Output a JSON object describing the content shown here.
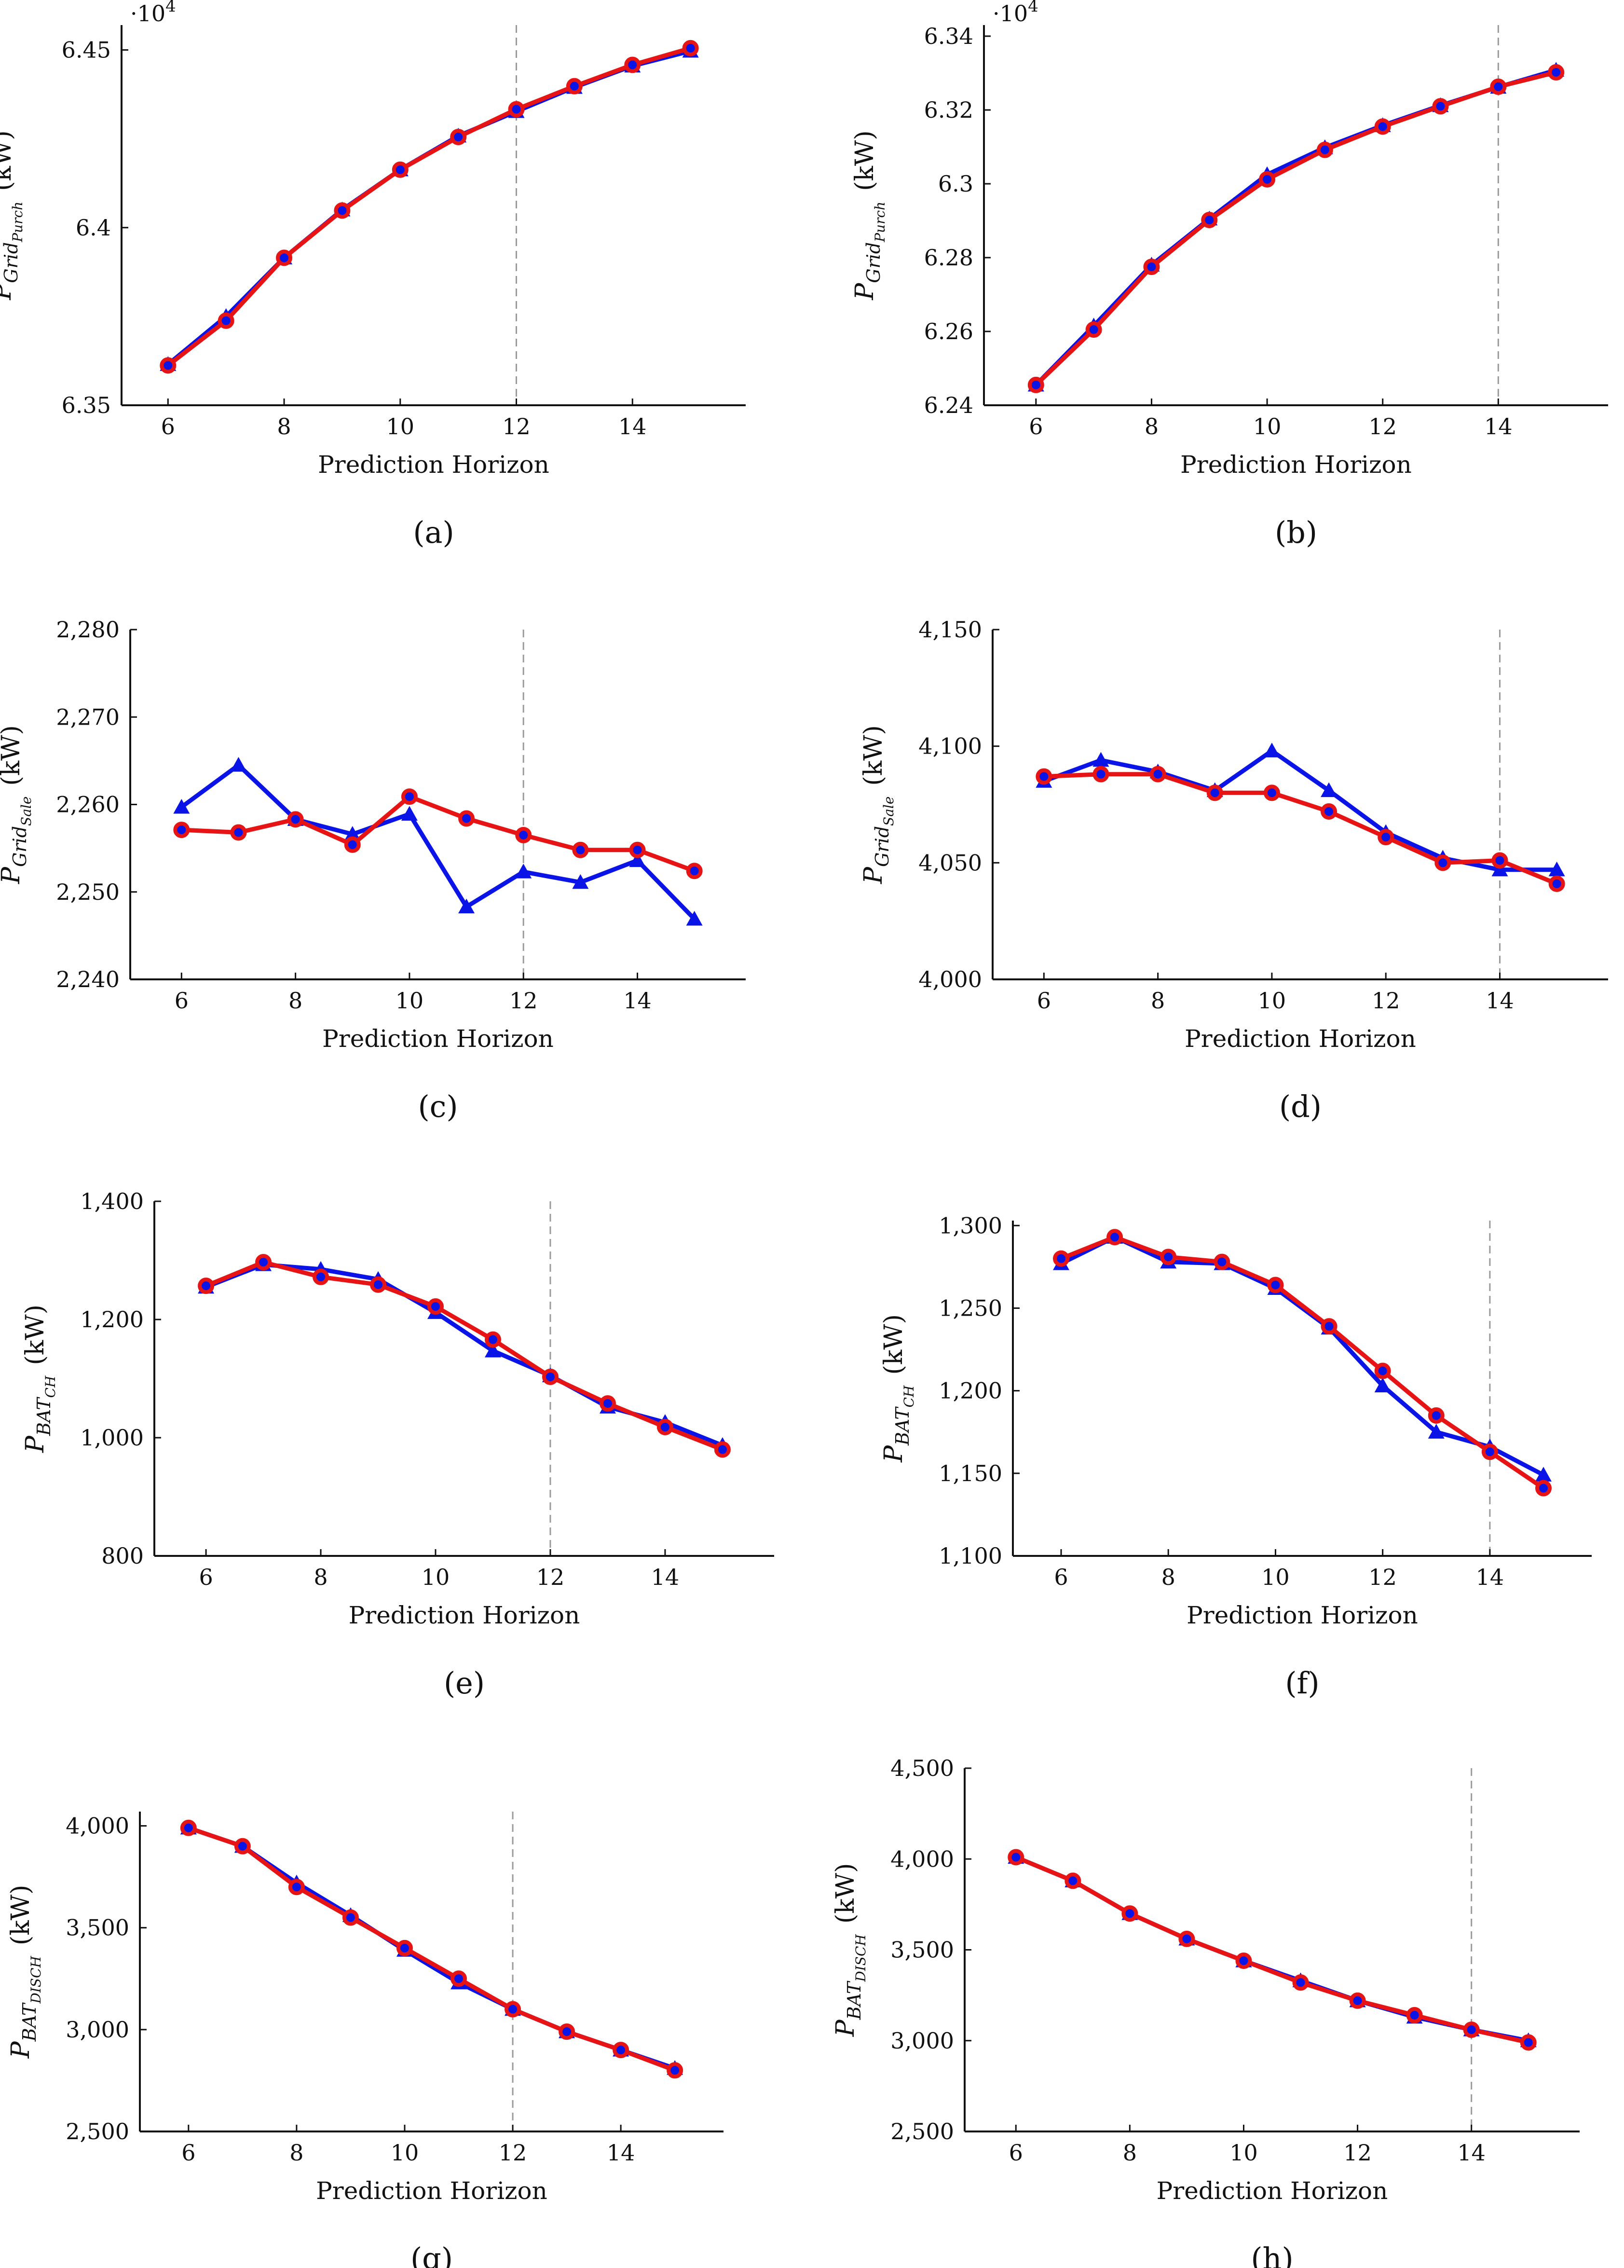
{
  "colors": {
    "blue": "#0a14e6",
    "red": "#e61414",
    "axis": "#111111",
    "vline": "#9a9a9a"
  },
  "legend": {},
  "chart_data": [
    {
      "type": "line",
      "panel": "a",
      "caption": "(a)",
      "xlabel": "Prediction Horizon",
      "ylabel_main": "P",
      "ylabel_sub": "Grid",
      "ylabel_subsub": "Purch",
      "ylabel_unit": "(kW)",
      "exponent_label": "·10",
      "exponent_power": "4",
      "x": [
        6,
        7,
        8,
        9,
        10,
        11,
        12,
        13,
        14,
        15
      ],
      "xlim": [
        5.2,
        15.95
      ],
      "xticks": [
        6,
        8,
        10,
        12,
        14
      ],
      "ylim": [
        6.35,
        6.457
      ],
      "yticks": [
        6.35,
        6.4,
        6.45
      ],
      "yticklabels": [
        "6.35",
        "6.4",
        "6.45"
      ],
      "vline": 12,
      "series": [
        {
          "name": "blue",
          "marker": "triangle",
          "values": [
            6.3615,
            6.375,
            6.3915,
            6.405,
            6.4163,
            6.4258,
            6.4327,
            6.4395,
            6.4455,
            6.4497
          ]
        },
        {
          "name": "red",
          "marker": "circle",
          "values": [
            6.3612,
            6.3738,
            6.3915,
            6.4048,
            6.4163,
            6.4255,
            6.4333,
            6.4398,
            6.4458,
            6.4505
          ]
        }
      ]
    },
    {
      "type": "line",
      "panel": "b",
      "caption": "(b)",
      "xlabel": "Prediction Horizon",
      "ylabel_main": "P",
      "ylabel_sub": "Grid",
      "ylabel_subsub": "Purch",
      "ylabel_unit": "(kW)",
      "exponent_label": "·10",
      "exponent_power": "4",
      "x": [
        6,
        7,
        8,
        9,
        10,
        11,
        12,
        13,
        14,
        15
      ],
      "xlim": [
        5.1,
        15.9
      ],
      "xticks": [
        6,
        8,
        10,
        12,
        14
      ],
      "ylim": [
        6.24,
        6.343
      ],
      "yticks": [
        6.24,
        6.26,
        6.28,
        6.3,
        6.32,
        6.34
      ],
      "yticklabels": [
        "6.24",
        "6.26",
        "6.28",
        "6.3",
        "6.32",
        "6.34"
      ],
      "vline": 14,
      "series": [
        {
          "name": "blue",
          "marker": "triangle",
          "values": [
            6.2455,
            6.2615,
            6.278,
            6.2905,
            6.3025,
            6.3098,
            6.3158,
            6.3212,
            6.3262,
            6.3308
          ]
        },
        {
          "name": "red",
          "marker": "circle",
          "values": [
            6.2455,
            6.2605,
            6.2775,
            6.2902,
            6.3012,
            6.3092,
            6.3155,
            6.321,
            6.3263,
            6.3302
          ]
        }
      ]
    },
    {
      "type": "line",
      "panel": "c",
      "caption": "(c)",
      "xlabel": "Prediction Horizon",
      "ylabel_main": "P",
      "ylabel_sub": "Grid",
      "ylabel_subsub": "Sale",
      "ylabel_unit": "(kW)",
      "x": [
        6,
        7,
        8,
        9,
        10,
        11,
        12,
        13,
        14,
        15
      ],
      "xlim": [
        5.1,
        15.9
      ],
      "xticks": [
        6,
        8,
        10,
        12,
        14
      ],
      "ylim": [
        2240,
        2280
      ],
      "yticks": [
        2240,
        2250,
        2260,
        2270,
        2280
      ],
      "yticklabels": [
        "2,240",
        "2,250",
        "2,260",
        "2,270",
        "2,280"
      ],
      "vline": 12,
      "series": [
        {
          "name": "blue",
          "marker": "triangle",
          "values": [
            2259.7,
            2264.5,
            2258.3,
            2256.6,
            2258.9,
            2248.3,
            2252.3,
            2251.1,
            2253.6,
            2246.9
          ]
        },
        {
          "name": "red",
          "marker": "circle",
          "values": [
            2257.1,
            2256.8,
            2258.3,
            2255.4,
            2260.9,
            2258.4,
            2256.5,
            2254.8,
            2254.8,
            2252.4
          ]
        }
      ]
    },
    {
      "type": "line",
      "panel": "d",
      "caption": "(d)",
      "xlabel": "Prediction Horizon",
      "ylabel_main": "P",
      "ylabel_sub": "Grid",
      "ylabel_subsub": "Sale",
      "ylabel_unit": "(kW)",
      "x": [
        6,
        7,
        8,
        9,
        10,
        11,
        12,
        13,
        14,
        15
      ],
      "xlim": [
        5.1,
        15.9
      ],
      "xticks": [
        6,
        8,
        10,
        12,
        14
      ],
      "ylim": [
        4000,
        4150
      ],
      "yticks": [
        4000,
        4050,
        4100,
        4150
      ],
      "yticklabels": [
        "4,000",
        "4,050",
        "4,100",
        "4,150"
      ],
      "vline": 14,
      "series": [
        {
          "name": "blue",
          "marker": "triangle",
          "values": [
            4085,
            4094,
            4089,
            4081,
            4098,
            4081,
            4063,
            4052,
            4047,
            4047
          ]
        },
        {
          "name": "red",
          "marker": "circle",
          "values": [
            4087,
            4088,
            4088,
            4080,
            4080,
            4072,
            4061,
            4050,
            4051,
            4041
          ]
        }
      ]
    },
    {
      "type": "line",
      "panel": "e",
      "caption": "(e)",
      "xlabel": "Prediction Horizon",
      "ylabel_main": "P",
      "ylabel_sub": "BAT",
      "ylabel_subsub": "CH",
      "ylabel_unit": "(kW)",
      "x": [
        6,
        7,
        8,
        9,
        10,
        11,
        12,
        13,
        14,
        15
      ],
      "xlim": [
        5.1,
        15.9
      ],
      "xticks": [
        6,
        8,
        10,
        12,
        14
      ],
      "ylim": [
        800,
        1400
      ],
      "yticks": [
        800,
        1000,
        1200,
        1400
      ],
      "yticklabels": [
        "800",
        "1,000",
        "1,200",
        "1,400"
      ],
      "vline": 12,
      "series": [
        {
          "name": "blue",
          "marker": "triangle",
          "values": [
            1255,
            1293,
            1285,
            1268,
            1212,
            1147,
            1105,
            1052,
            1026,
            987
          ]
        },
        {
          "name": "red",
          "marker": "circle",
          "values": [
            1257,
            1297,
            1272,
            1259,
            1222,
            1166,
            1103,
            1058,
            1018,
            980
          ]
        }
      ]
    },
    {
      "type": "line",
      "panel": "f",
      "caption": "(f)",
      "xlabel": "Prediction Horizon",
      "ylabel_main": "P",
      "ylabel_sub": "BAT",
      "ylabel_subsub": "CH",
      "ylabel_unit": "(kW)",
      "x": [
        6,
        7,
        8,
        9,
        10,
        11,
        12,
        13,
        14,
        15
      ],
      "xlim": [
        5.1,
        15.9
      ],
      "xticks": [
        6,
        8,
        10,
        12,
        14
      ],
      "ylim": [
        1100,
        1303
      ],
      "yticks": [
        1100,
        1150,
        1200,
        1250,
        1300
      ],
      "yticklabels": [
        "1,100",
        "1,150",
        "1,200",
        "1,250",
        "1,300"
      ],
      "vline": 14,
      "series": [
        {
          "name": "blue",
          "marker": "triangle",
          "values": [
            1277,
            1293,
            1278,
            1277,
            1262,
            1238,
            1203,
            1175,
            1166,
            1149
          ]
        },
        {
          "name": "red",
          "marker": "circle",
          "values": [
            1280,
            1293,
            1281,
            1278,
            1264,
            1239,
            1212,
            1185,
            1163,
            1141
          ]
        }
      ]
    },
    {
      "type": "line",
      "panel": "g",
      "caption": "(g)",
      "xlabel": "Prediction Horizon",
      "ylabel_main": "P",
      "ylabel_sub": "BAT",
      "ylabel_subsub": "DISCH",
      "ylabel_unit": "(kW)",
      "x": [
        6,
        7,
        8,
        9,
        10,
        11,
        12,
        13,
        14,
        15
      ],
      "xlim": [
        5.1,
        15.9
      ],
      "xticks": [
        6,
        8,
        10,
        12,
        14
      ],
      "ylim": [
        2500,
        4070
      ],
      "yticks": [
        2500,
        3000,
        3500,
        4000
      ],
      "yticklabels": [
        "2,500",
        "3,000",
        "3,500",
        "4,000"
      ],
      "vline": 12,
      "series": [
        {
          "name": "blue",
          "marker": "triangle",
          "values": [
            3990,
            3900,
            3720,
            3560,
            3390,
            3230,
            3100,
            2990,
            2900,
            2810
          ]
        },
        {
          "name": "red",
          "marker": "circle",
          "values": [
            3990,
            3900,
            3700,
            3550,
            3400,
            3250,
            3100,
            2990,
            2900,
            2800
          ]
        }
      ]
    },
    {
      "type": "line",
      "panel": "h",
      "caption": "(h)",
      "xlabel": "Prediction Horizon",
      "ylabel_main": "P",
      "ylabel_sub": "BAT",
      "ylabel_subsub": "DISCH",
      "ylabel_unit": "(kW)",
      "x": [
        6,
        7,
        8,
        9,
        10,
        11,
        12,
        13,
        14,
        15
      ],
      "xlim": [
        5.1,
        15.9
      ],
      "xticks": [
        6,
        8,
        10,
        12,
        14
      ],
      "ylim": [
        2500,
        4500
      ],
      "yticks": [
        2500,
        3000,
        3500,
        4000,
        4500
      ],
      "yticklabels": [
        "2,500",
        "3,000",
        "3,500",
        "4,000",
        "4,500"
      ],
      "vline": 14,
      "series": [
        {
          "name": "blue",
          "marker": "triangle",
          "values": [
            4010,
            3880,
            3700,
            3560,
            3440,
            3330,
            3220,
            3130,
            3060,
            3000
          ]
        },
        {
          "name": "red",
          "marker": "circle",
          "values": [
            4010,
            3880,
            3700,
            3560,
            3440,
            3320,
            3220,
            3140,
            3060,
            2990
          ]
        }
      ]
    }
  ]
}
